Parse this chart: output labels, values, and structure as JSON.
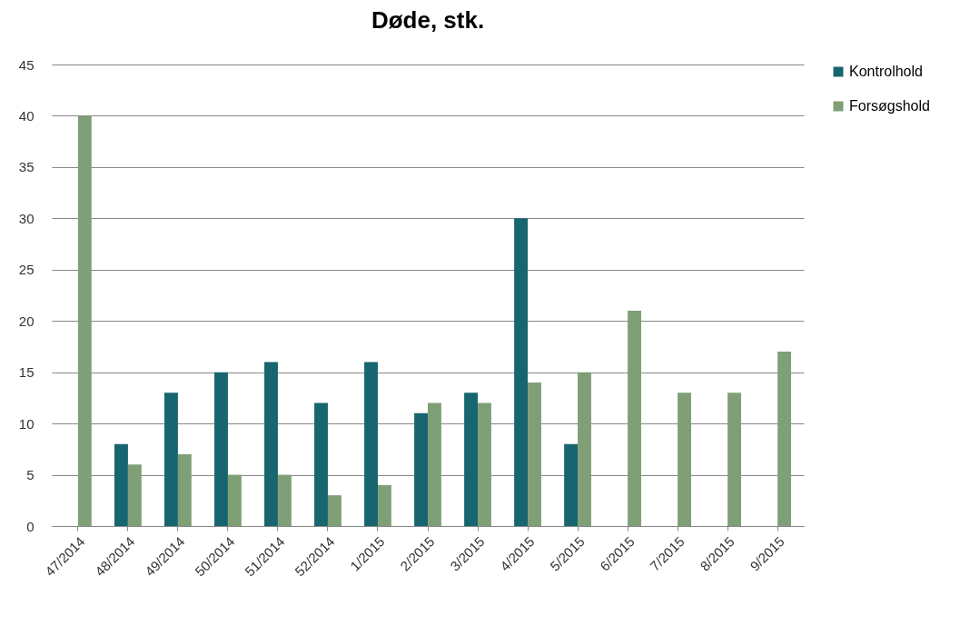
{
  "chart_data": {
    "type": "bar",
    "title": "Døde, stk.",
    "categories": [
      "47/2014",
      "48/2014",
      "49/2014",
      "50/2014",
      "51/2014",
      "52/2014",
      "1/2015",
      "2/2015",
      "3/2015",
      "4/2015",
      "5/2015",
      "6/2015",
      "7/2015",
      "8/2015",
      "9/2015"
    ],
    "series": [
      {
        "name": "Kontrolhold",
        "color": "#17656f",
        "values": [
          null,
          8,
          13,
          15,
          16,
          12,
          16,
          11,
          13,
          30,
          8,
          null,
          null,
          null,
          null
        ]
      },
      {
        "name": "Forsøgshold",
        "color": "#7f9f77",
        "values": [
          40,
          6,
          7,
          5,
          5,
          3,
          4,
          12,
          12,
          14,
          15,
          21,
          13,
          13,
          17
        ]
      }
    ],
    "ylim": [
      0,
      45
    ],
    "yticks": [
      0,
      5,
      10,
      15,
      20,
      25,
      30,
      35,
      40,
      45
    ],
    "grid": "y",
    "legend": "right"
  }
}
